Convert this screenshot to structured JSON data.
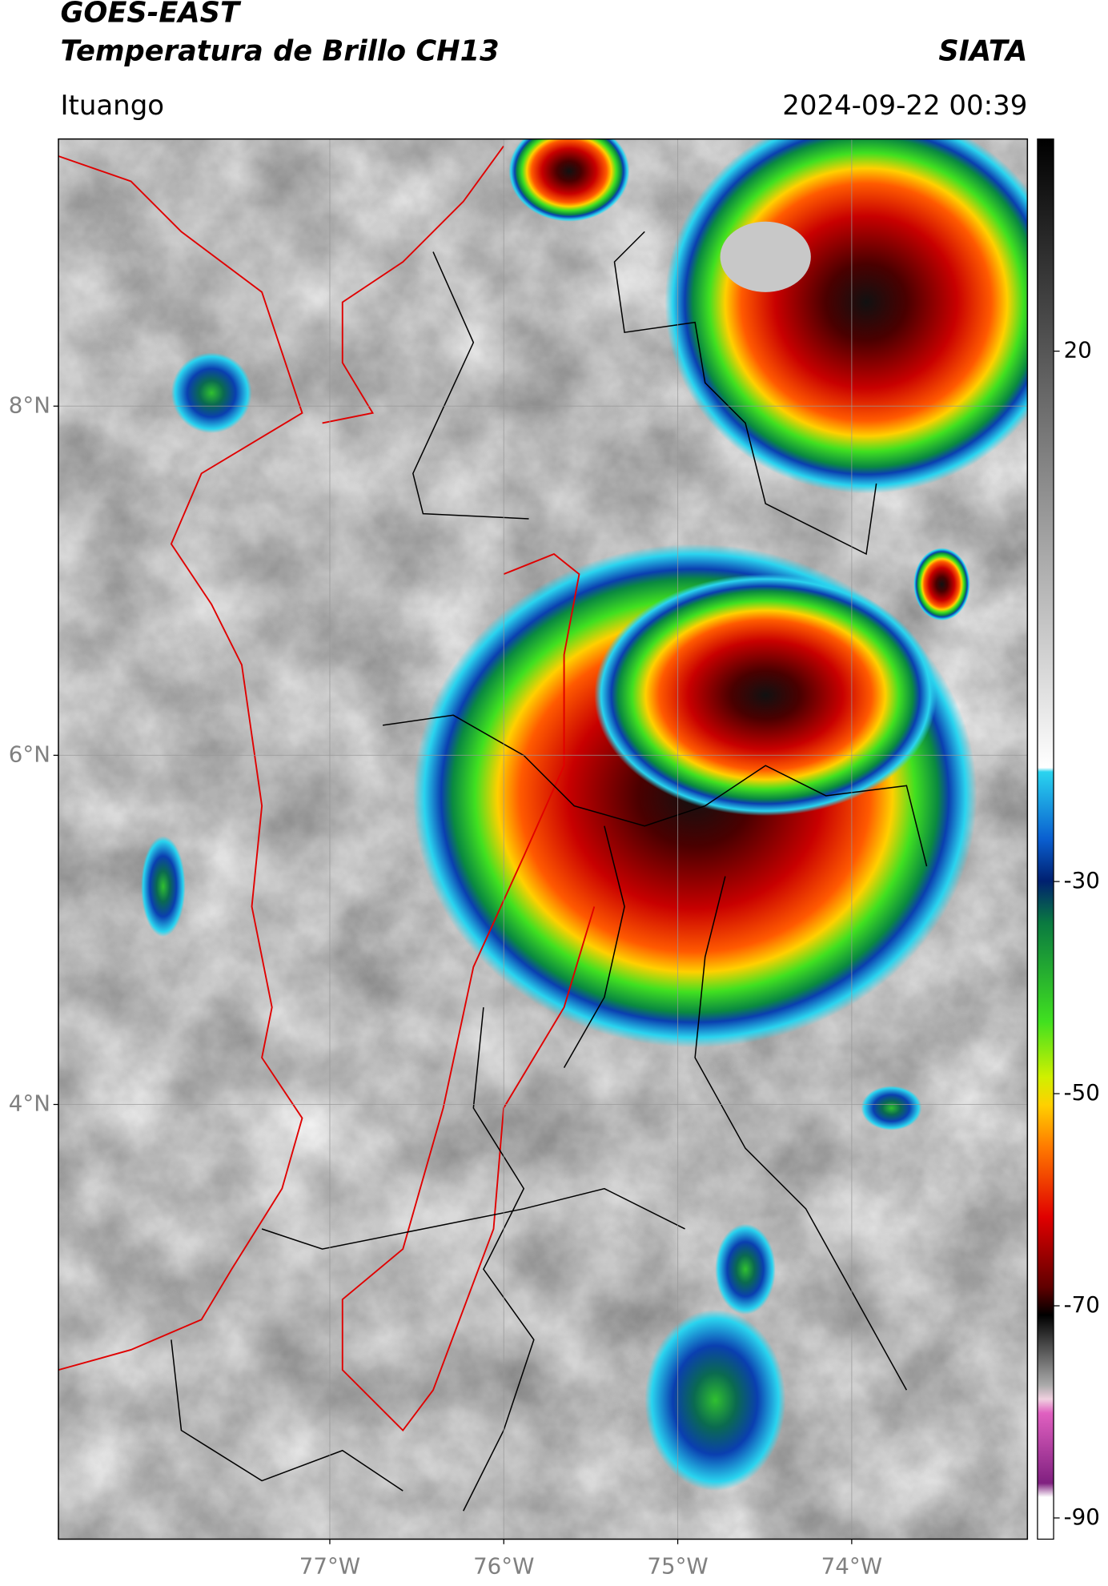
{
  "header": {
    "title_line1": "GOES-EAST",
    "title_line2": "Temperatura de Brillo CH13",
    "agency": "SIATA",
    "location": "Ituango",
    "datetime": "2024-09-22 00:39"
  },
  "map": {
    "lonlim": [
      -78.56,
      -72.99
    ],
    "latlim": [
      1.51,
      9.53
    ],
    "lat_ticks": [
      {
        "value": 8,
        "label": "8°N"
      },
      {
        "value": 6,
        "label": "6°N"
      },
      {
        "value": 4,
        "label": "4°N"
      }
    ],
    "lon_ticks": [
      {
        "value": -77,
        "label": "77°W"
      },
      {
        "value": -76,
        "label": "76°W"
      },
      {
        "value": -75,
        "label": "75°W"
      },
      {
        "value": -74,
        "label": "74°W"
      }
    ]
  },
  "colorbar": {
    "lim": [
      -92,
      40
    ],
    "ticks": [
      20,
      -30,
      -50,
      -70,
      -90
    ]
  }
}
